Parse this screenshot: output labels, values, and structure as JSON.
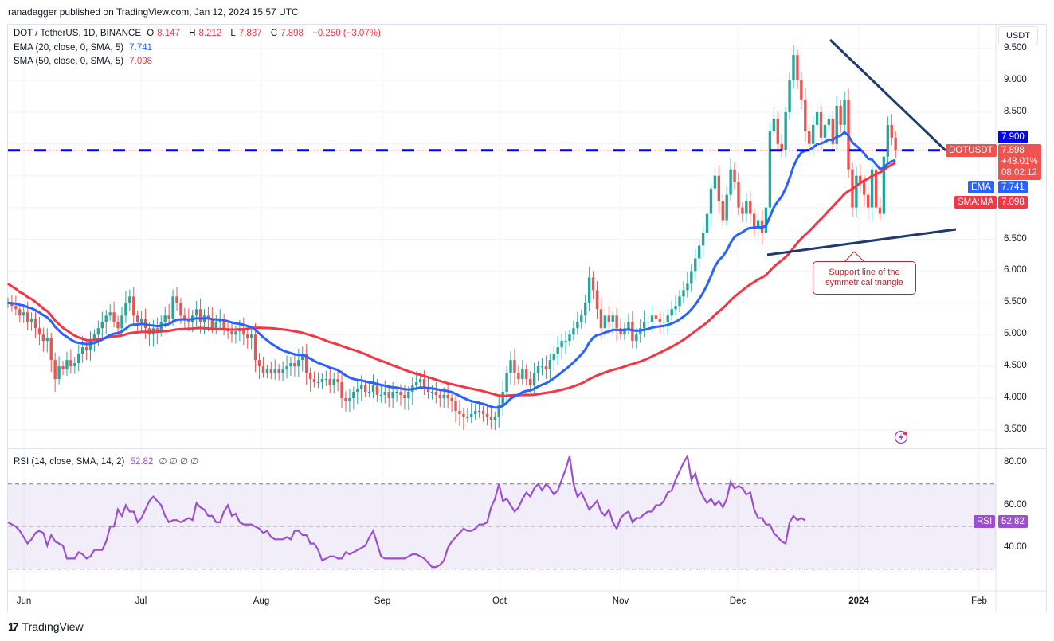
{
  "header": {
    "published": "ranadagger published on TradingView.com, Jan 12, 2024 15:57 UTC"
  },
  "legend": {
    "symbol": "DOT / TetherUS, 1D, BINANCE",
    "open_label": "O",
    "open": "8.147",
    "high_label": "H",
    "high": "8.212",
    "low_label": "L",
    "low": "7.837",
    "close_label": "C",
    "close": "7.898",
    "change": "−0.250 (−3.07%)",
    "ema_label": "EMA (20, close, 0, SMA, 5)",
    "ema_value": "7.741",
    "sma_label": "SMA (50, close, 0, SMA, 5)",
    "sma_value": "7.098",
    "rsi_label": "RSI (14, close, SMA, 14, 2)",
    "rsi_value": "52.82",
    "rsi_extra": "∅ ∅ ∅ ∅"
  },
  "price_axis": {
    "currency_button": "USDT",
    "ticks": [
      "9.500",
      "9.000",
      "8.500",
      "7.000",
      "6.500",
      "6.000",
      "5.500",
      "5.000",
      "4.500",
      "4.000",
      "3.500"
    ]
  },
  "tags": {
    "line_price": "7.900",
    "symbol_tag": "DOTUSDT",
    "last_price": "7.898",
    "last_change": "+48.01%",
    "countdown": "08:02:12",
    "ema_tag": "EMA",
    "ema_value": "7.741",
    "sma_tag": "SMA:MA",
    "sma_value": "7.098",
    "rsi_tag": "RSI",
    "rsi_value": "52.82"
  },
  "rsi_axis": {
    "ticks": [
      "80.00",
      "60.00",
      "40.00"
    ]
  },
  "time_axis": {
    "labels": [
      "Jun",
      "Jul",
      "Aug",
      "Sep",
      "Oct",
      "Nov",
      "Dec",
      "2024",
      "Feb"
    ]
  },
  "annotation": {
    "line1": "Support line of the",
    "line2": "symmetrical triangle"
  },
  "footer": {
    "logo_text": "TradingView"
  },
  "colors": {
    "up": "#26a69a",
    "down": "#ef5350",
    "ema": "#2962ff",
    "sma": "#f23645",
    "rsi": "#9c4fd1",
    "trendline": "#1e3a6e",
    "hline": "#0000ff"
  },
  "chart_data": {
    "type": "candlestick",
    "title": "DOT / TetherUS, 1D, BINANCE",
    "x_range": [
      "2023-05-27",
      "2024-01-12"
    ],
    "y_range": [
      3.3,
      9.7
    ],
    "x_ticks": [
      "Jun",
      "Jul",
      "Aug",
      "Sep",
      "Oct",
      "Nov",
      "Dec",
      "2024",
      "Feb"
    ],
    "y_ticks": [
      3.5,
      4.0,
      4.5,
      5.0,
      5.5,
      6.0,
      6.5,
      7.0,
      8.5,
      9.0,
      9.5
    ],
    "close_path": [
      5.5,
      5.45,
      5.4,
      5.3,
      5.35,
      5.2,
      5.25,
      5.1,
      5.0,
      4.9,
      4.95,
      4.6,
      4.3,
      4.5,
      4.45,
      4.6,
      4.5,
      4.55,
      4.7,
      4.8,
      4.75,
      4.9,
      5.0,
      5.1,
      5.2,
      5.3,
      5.35,
      5.2,
      5.1,
      5.3,
      5.5,
      5.6,
      5.3,
      5.2,
      5.25,
      5.1,
      5.0,
      5.1,
      5.05,
      5.2,
      5.3,
      5.25,
      5.6,
      5.5,
      5.3,
      5.25,
      5.2,
      5.3,
      5.4,
      5.2,
      5.3,
      5.25,
      5.1,
      5.2,
      5.25,
      5.1,
      5.05,
      5.0,
      5.05,
      5.1,
      5.0,
      4.95,
      5.0,
      4.6,
      4.5,
      4.4,
      4.45,
      4.4,
      4.45,
      4.4,
      4.45,
      4.5,
      4.55,
      4.5,
      4.6,
      4.7,
      4.4,
      4.3,
      4.25,
      4.25,
      4.3,
      4.3,
      4.2,
      4.3,
      4.25,
      4.0,
      3.95,
      4.0,
      4.1,
      4.15,
      4.2,
      4.1,
      4.1,
      4.2,
      4.05,
      4.05,
      4.1,
      4.0,
      4.1,
      4.1,
      4.05,
      4.0,
      4.1,
      4.2,
      4.25,
      4.3,
      4.15,
      4.1,
      4.1,
      4.05,
      4.0,
      4.05,
      4.0,
      3.95,
      3.8,
      3.75,
      3.7,
      3.7,
      3.75,
      3.8,
      3.8,
      3.75,
      3.7,
      3.65,
      3.7,
      3.9,
      4.1,
      4.4,
      4.6,
      4.4,
      4.3,
      4.45,
      4.3,
      4.2,
      4.4,
      4.5,
      4.5,
      4.45,
      4.6,
      4.7,
      4.8,
      4.9,
      4.9,
      5.0,
      5.1,
      5.2,
      5.3,
      5.5,
      5.9,
      5.7,
      5.4,
      5.1,
      5.3,
      5.2,
      5.3,
      5.1,
      5.0,
      5.1,
      5.2,
      4.9,
      5.0,
      5.1,
      5.2,
      5.2,
      5.3,
      5.25,
      5.2,
      5.2,
      5.3,
      5.4,
      5.45,
      5.6,
      5.7,
      5.8,
      6.0,
      6.2,
      6.4,
      6.6,
      6.9,
      7.3,
      7.5,
      7.1,
      6.8,
      7.2,
      7.6,
      7.4,
      7.0,
      6.9,
      7.1,
      6.9,
      6.7,
      6.8,
      6.6,
      7.0,
      8.2,
      8.4,
      8.0,
      7.9,
      8.5,
      9.0,
      9.4,
      9.0,
      8.7,
      8.2,
      8.0,
      8.3,
      8.5,
      8.1,
      8.3,
      8.4,
      8.0,
      8.6,
      8.3,
      8.7,
      7.6,
      7.0,
      7.5,
      7.4,
      7.2,
      7.0,
      7.6,
      7.0,
      6.9,
      7.8,
      8.3,
      8.1,
      7.9
    ],
    "ema20_end": 7.741,
    "sma50_end": 7.098,
    "last_close": 7.898,
    "horizontal_line": 7.9,
    "resistance_line": {
      "from": [
        "2023-12-25",
        9.6
      ],
      "to": [
        "2024-01-22",
        7.9
      ]
    },
    "support_line": {
      "from": [
        "2023-12-08",
        6.25
      ],
      "to": [
        "2024-01-23",
        6.65
      ]
    },
    "annotation": "Support line of the symmetrical triangle",
    "rsi": {
      "params": "14, close, SMA, 14, 2",
      "value": 52.82,
      "levels": [
        70,
        50,
        30
      ],
      "y_ticks": [
        40,
        60,
        80
      ],
      "path": [
        52,
        51,
        50,
        48,
        45,
        42,
        44,
        47,
        48,
        47,
        41,
        46,
        43,
        42,
        41,
        35,
        35,
        35,
        38,
        37,
        35,
        36,
        39,
        39,
        39,
        43,
        50,
        50,
        58,
        55,
        60,
        57,
        57,
        52,
        54,
        58,
        62,
        64,
        62,
        60,
        55,
        52,
        53,
        53,
        52,
        53,
        54,
        53,
        61,
        59,
        58,
        55,
        55,
        52,
        52,
        57,
        60,
        55,
        56,
        52,
        51,
        51,
        51,
        50,
        49,
        47,
        48,
        45,
        44,
        44,
        44,
        45,
        44,
        48,
        48,
        46,
        46,
        42,
        42,
        39,
        34,
        35,
        36,
        36,
        35,
        35,
        38,
        37,
        38,
        39,
        40,
        41,
        45,
        48,
        42,
        36,
        35,
        35,
        35,
        35,
        35,
        35,
        36,
        37,
        37,
        36,
        35,
        33,
        31,
        31,
        32,
        34,
        40,
        43,
        45,
        47,
        49,
        48,
        48,
        49,
        51,
        51,
        52,
        59,
        63,
        70,
        62,
        63,
        60,
        57,
        59,
        63,
        66,
        64,
        68,
        70,
        67,
        70,
        68,
        65,
        67,
        72,
        77,
        83,
        70,
        64,
        66,
        62,
        58,
        60,
        62,
        57,
        55,
        58,
        52,
        49,
        54,
        56,
        57,
        52,
        54,
        54,
        56,
        57,
        57,
        60,
        60,
        62,
        66,
        67,
        72,
        76,
        80,
        83,
        72,
        75,
        68,
        64,
        61,
        63,
        60,
        62,
        59,
        63,
        71,
        68,
        69,
        68,
        65,
        66,
        58,
        54,
        54,
        51,
        51,
        47,
        45,
        43,
        42,
        52,
        55,
        53,
        54,
        52.82
      ]
    }
  }
}
